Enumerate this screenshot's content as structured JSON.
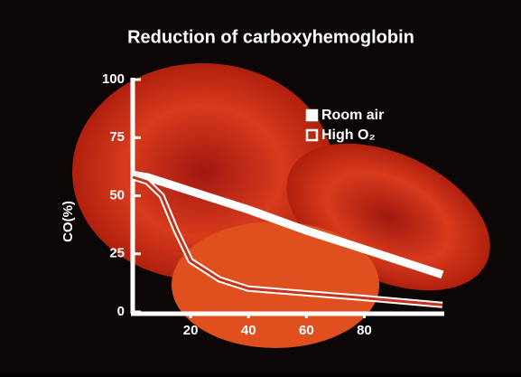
{
  "chart_data": {
    "type": "line",
    "title": "Reduction of carboxyhemoglobin",
    "y_label": "CO(%)",
    "x": [
      0,
      5,
      10,
      15,
      20,
      30,
      40,
      60,
      80,
      107
    ],
    "series": [
      {
        "name": "Room air",
        "color": "#ffffff",
        "values": [
          59,
          58,
          56,
          54,
          52,
          48,
          44,
          35,
          27,
          16
        ]
      },
      {
        "name": "High O₂",
        "color": "#ffffff",
        "values": [
          58,
          56,
          50,
          35,
          22,
          14,
          10,
          8,
          6,
          3
        ]
      }
    ],
    "xlim": [
      0,
      107
    ],
    "xticks": [
      20,
      40,
      60,
      80
    ],
    "ylim": [
      0,
      100
    ],
    "yticks": [
      0,
      25,
      50,
      75,
      100
    ]
  }
}
